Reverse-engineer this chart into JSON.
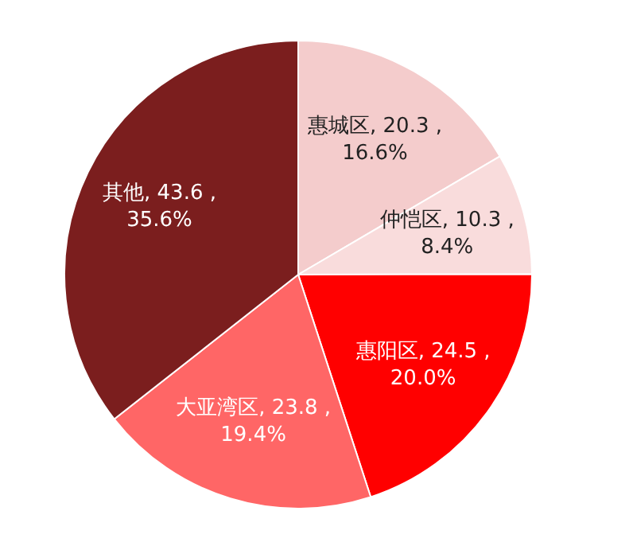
{
  "chart_data": {
    "type": "pie",
    "categories": [
      "惠城区",
      "仲恺区",
      "惠阳区",
      "大亚湾区",
      "其他"
    ],
    "values": [
      20.3,
      10.3,
      24.5,
      23.8,
      43.6
    ],
    "value_labels": [
      "20.3 ,\n16.6%",
      "10.3 ,\n8.4%",
      "24.5 ,\n20.0%",
      "23.8 ,\n19.4%",
      "43.6 ,\n35.6%"
    ],
    "colors": [
      "#f4cccc",
      "#f9dcdc",
      "#ff0000",
      "#ff6666",
      "#7b1e1e"
    ],
    "legend": false
  }
}
